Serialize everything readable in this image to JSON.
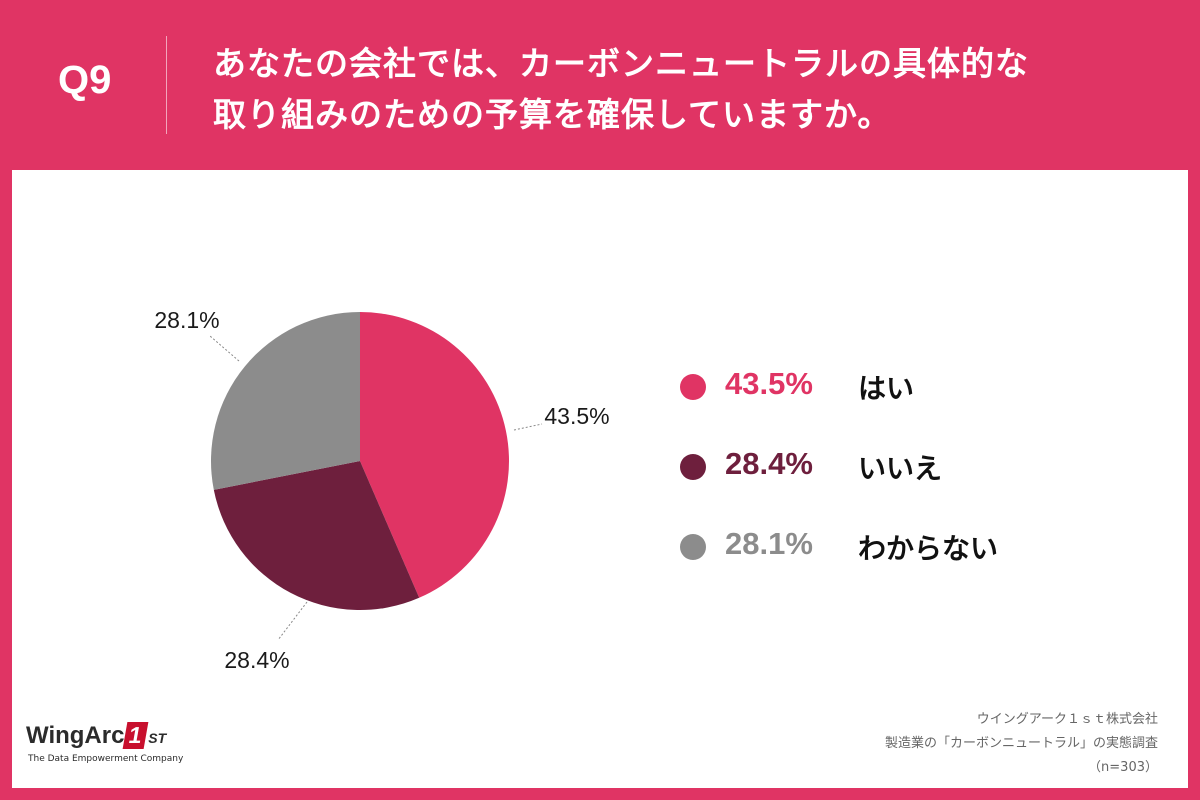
{
  "header": {
    "question_label": "Q9",
    "title_line1": "あなたの会社では、カーボンニュートラルの具体的な",
    "title_line2": "取り組みのための予算を確保していますか。"
  },
  "chart_data": {
    "type": "pie",
    "title": "あなたの会社では、カーボンニュートラルの具体的な取り組みのための予算を確保していますか。",
    "start_angle_deg": 0,
    "direction": "clockwise",
    "slices": [
      {
        "label": "はい",
        "value": 43.5,
        "display": "43.5%",
        "color": "#e03464"
      },
      {
        "label": "いいえ",
        "value": 28.4,
        "display": "28.4%",
        "color": "#6e1f3d"
      },
      {
        "label": "わからない",
        "value": 28.1,
        "display": "28.1%",
        "color": "#8c8c8c"
      }
    ]
  },
  "footer": {
    "logo_text": "WingArc",
    "logo_number": "1",
    "logo_suffix": "ST",
    "logo_tagline": "The Data Empowerment Company",
    "source_company": "ウイングアーク１ｓｔ株式会社",
    "source_survey": "製造業の「カーボンニュートラル」の実態調査",
    "source_n": "（n=303）"
  }
}
